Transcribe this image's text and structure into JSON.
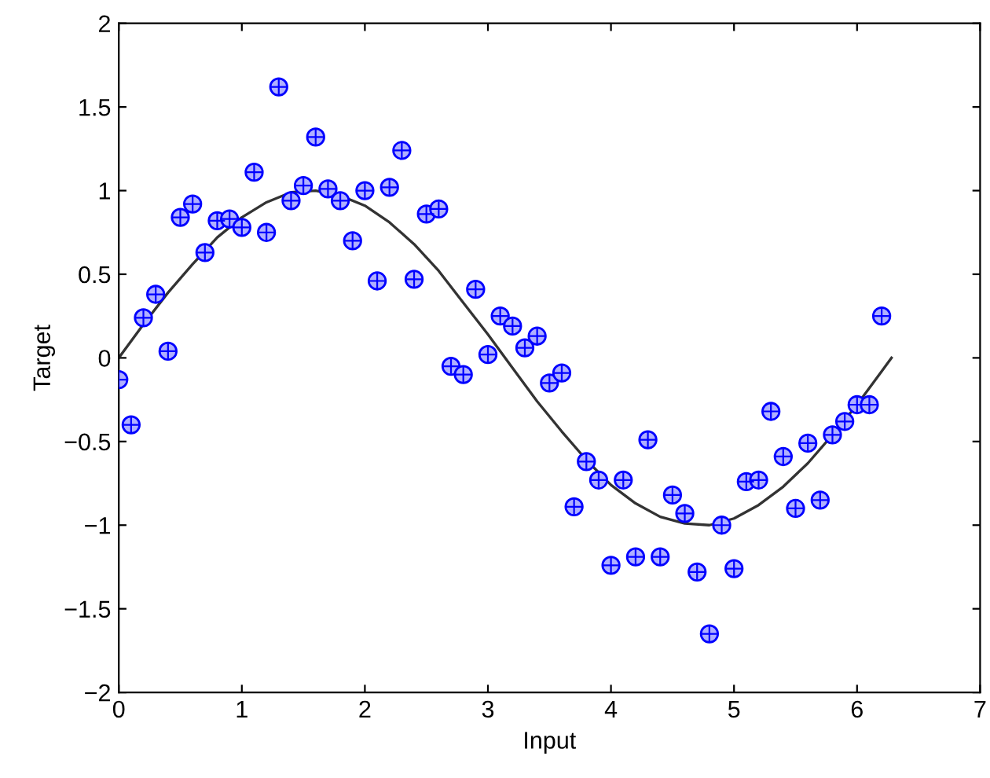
{
  "chart_data": {
    "type": "scatter",
    "xlabel": "Input",
    "ylabel": "Target",
    "xlim": [
      0,
      7
    ],
    "ylim": [
      -2,
      2
    ],
    "xticks": [
      0,
      1,
      2,
      3,
      4,
      5,
      6,
      7
    ],
    "yticks": [
      {
        "value": -2,
        "label": "−2"
      },
      {
        "value": -1.5,
        "label": "−1.5"
      },
      {
        "value": -1,
        "label": "−1"
      },
      {
        "value": -0.5,
        "label": "−0.5"
      },
      0,
      0.5,
      1,
      1.5,
      2
    ],
    "grid": false,
    "legend": false,
    "marker": "circle",
    "series": [
      {
        "color": "#0000ff",
        "x": [
          0,
          0.1,
          0.2,
          0.3,
          0.4,
          0.5,
          0.6,
          0.7,
          0.8,
          0.9,
          1.0,
          1.1,
          1.2,
          1.3,
          1.4,
          1.5,
          1.6,
          1.7,
          1.8,
          1.9,
          2.0,
          2.1,
          2.2,
          2.3,
          2.4,
          2.5,
          2.6,
          2.7,
          2.8,
          2.9,
          3.0,
          3.1,
          3.2,
          3.3,
          3.4,
          3.5,
          3.6,
          3.7,
          3.8,
          3.9,
          4.0,
          4.1,
          4.2,
          4.3,
          4.4,
          4.5,
          4.6,
          4.7,
          4.8,
          4.9,
          5.0,
          5.1,
          5.2,
          5.3,
          5.4,
          5.5,
          5.6,
          5.7,
          5.8,
          5.9,
          6.0,
          6.1,
          6.2
        ],
        "values": [
          -0.13,
          -0.4,
          0.24,
          0.38,
          0.04,
          0.84,
          0.92,
          0.63,
          0.82,
          0.83,
          0.78,
          1.11,
          0.75,
          1.62,
          0.94,
          1.03,
          1.32,
          1.01,
          0.94,
          0.7,
          1.0,
          0.46,
          1.02,
          1.24,
          0.47,
          0.86,
          0.89,
          -0.05,
          -0.1,
          0.41,
          0.02,
          0.25,
          0.19,
          0.06,
          0.13,
          -0.15,
          -0.09,
          -0.89,
          -0.62,
          -0.73,
          -1.24,
          -0.73,
          -1.19,
          -0.49,
          -1.19,
          -0.82,
          -0.93,
          -1.28,
          -1.65,
          -1.0,
          -1.26,
          -0.74,
          -0.73,
          -0.32,
          -0.59,
          -0.9,
          -0.51,
          -0.85,
          -0.46,
          -0.38,
          -0.28,
          -0.28,
          0.25
        ]
      },
      {
        "type": "line",
        "color": "#333333",
        "marker": "none",
        "line_style": "solid",
        "x": [
          0,
          0.2,
          0.4,
          0.6,
          0.8,
          1.0,
          1.2,
          1.4,
          1.6,
          1.8,
          2.0,
          2.2,
          2.4,
          2.6,
          2.8,
          3.0,
          3.2,
          3.4,
          3.6,
          3.8,
          4.0,
          4.2,
          4.4,
          4.6,
          4.8,
          5.0,
          5.2,
          5.4,
          5.6,
          5.8,
          6.0,
          6.2,
          6.28
        ],
        "values": [
          0,
          0.2,
          0.39,
          0.56,
          0.72,
          0.84,
          0.93,
          0.99,
          1.0,
          0.97,
          0.91,
          0.81,
          0.68,
          0.52,
          0.33,
          0.14,
          -0.06,
          -0.26,
          -0.44,
          -0.61,
          -0.76,
          -0.87,
          -0.95,
          -0.99,
          -1.0,
          -0.96,
          -0.88,
          -0.77,
          -0.63,
          -0.46,
          -0.28,
          -0.08,
          0.0
        ]
      }
    ]
  }
}
